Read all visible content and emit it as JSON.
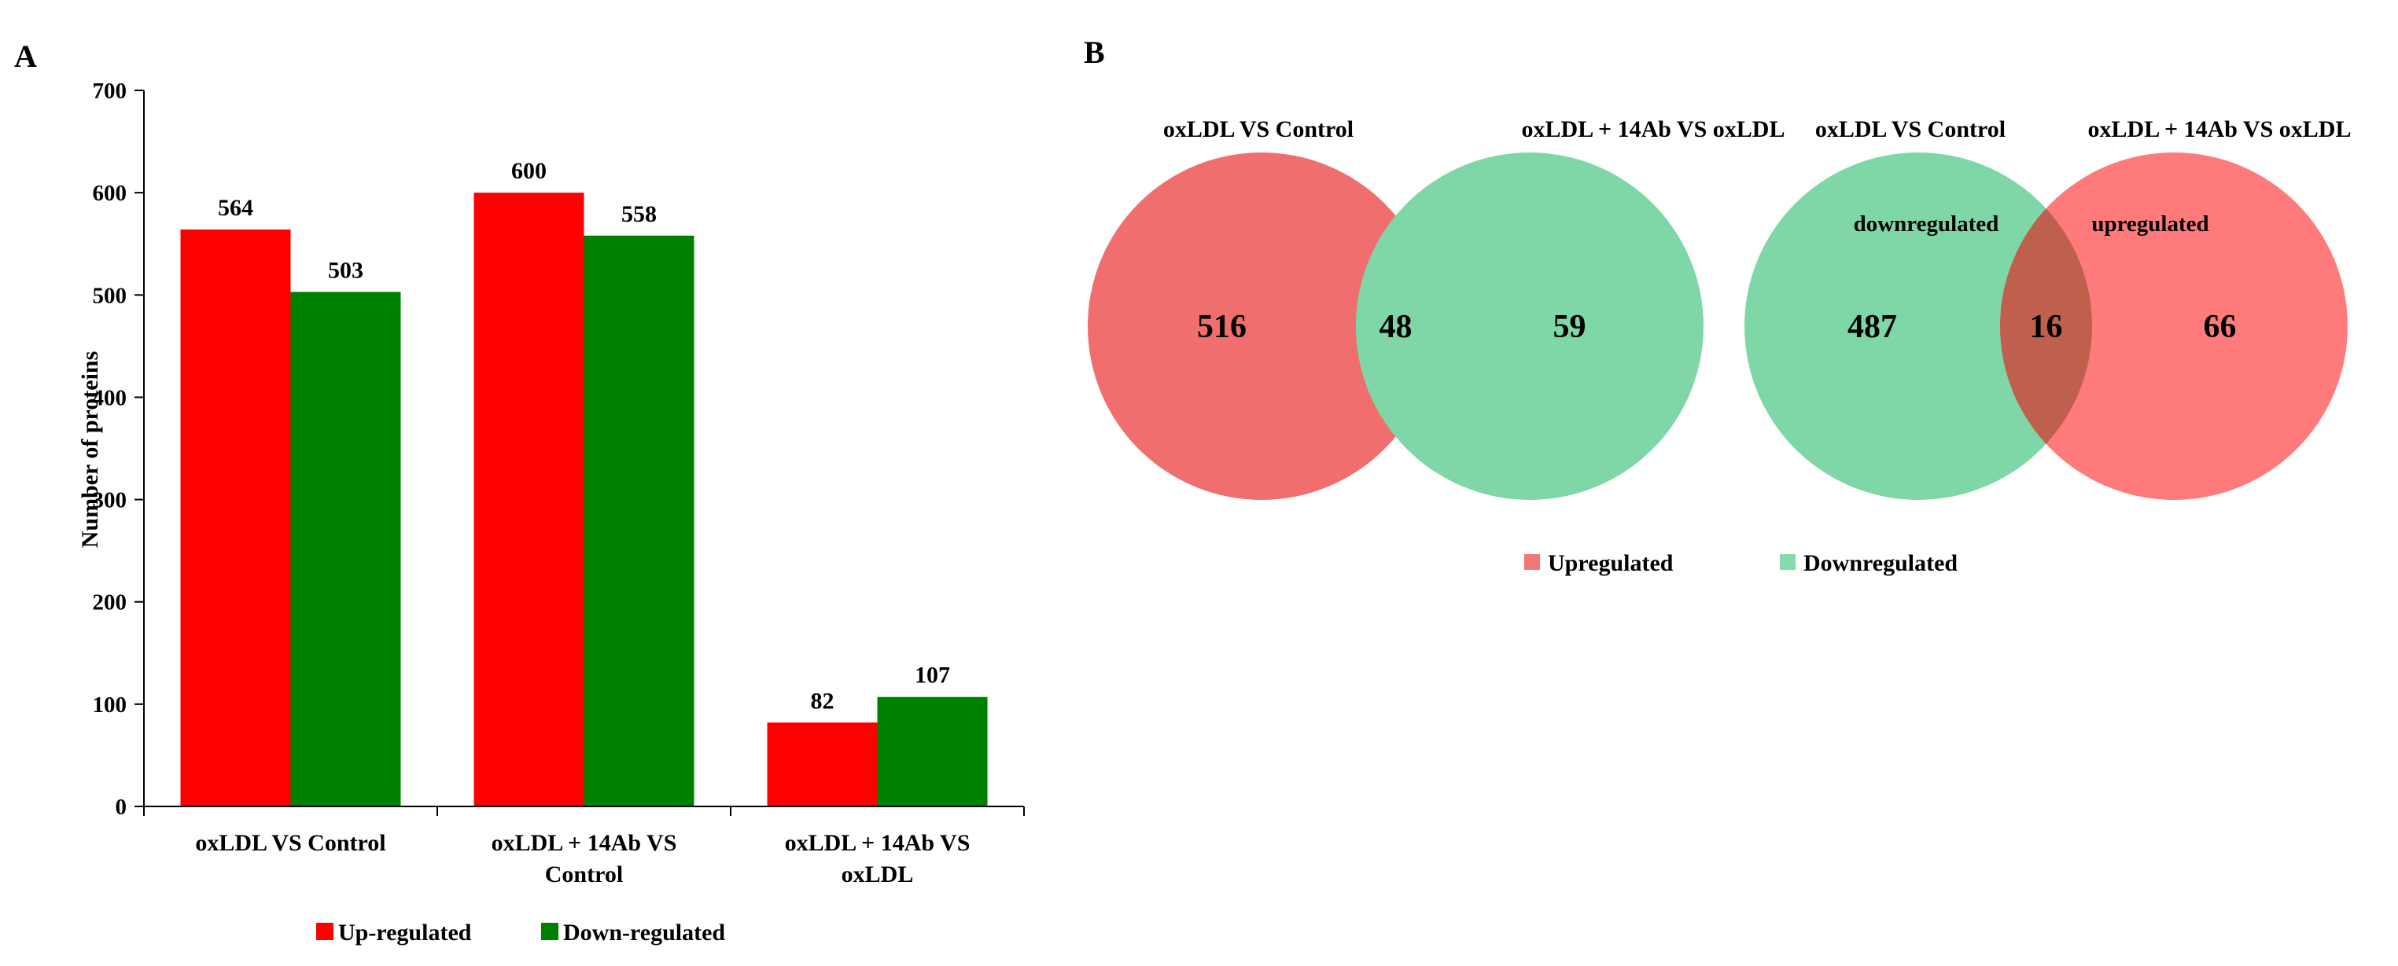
{
  "panel_a": {
    "letter": "A",
    "chart_data": {
      "type": "bar",
      "categories": [
        [
          "oxLDL VS Control"
        ],
        [
          "oxLDL + 14Ab VS",
          "Control"
        ],
        [
          "oxLDL + 14Ab VS",
          "oxLDL"
        ]
      ],
      "series": [
        {
          "name": "Up-regulated",
          "color": "#ff0000",
          "values": [
            564,
            600,
            82
          ]
        },
        {
          "name": "Down-regulated",
          "color": "#008000",
          "values": [
            503,
            558,
            107
          ]
        }
      ],
      "ylabel": "Number of proteins",
      "ylim": [
        0,
        700
      ],
      "yticks": [
        0,
        100,
        200,
        300,
        400,
        500,
        600,
        700
      ],
      "grid": false,
      "legend_position": "bottom"
    }
  },
  "panel_b": {
    "letter": "B",
    "venns": [
      {
        "left_title": "oxLDL VS Control",
        "right_title": "oxLDL + 14Ab VS oxLDL",
        "left_label": "",
        "right_label": "",
        "left_color": "#f06e6e",
        "right_color": "#7fd7a8",
        "overlap_color": "#7fd7a8",
        "left_only": 516,
        "overlap": 48,
        "right_only": 59
      },
      {
        "left_title": "oxLDL VS Control",
        "right_title": "oxLDL + 14Ab VS oxLDL",
        "left_label": "downregulated",
        "right_label": "upregulated",
        "left_color": "#7fd7a8",
        "right_color": "#ff7b7b",
        "overlap_color": "#bf5f4e",
        "left_only": 487,
        "overlap": 16,
        "right_only": 66
      }
    ],
    "legend": [
      {
        "name": "Upregulated",
        "color": "#f07878"
      },
      {
        "name": "Downregulated",
        "color": "#86dbaa"
      }
    ]
  }
}
